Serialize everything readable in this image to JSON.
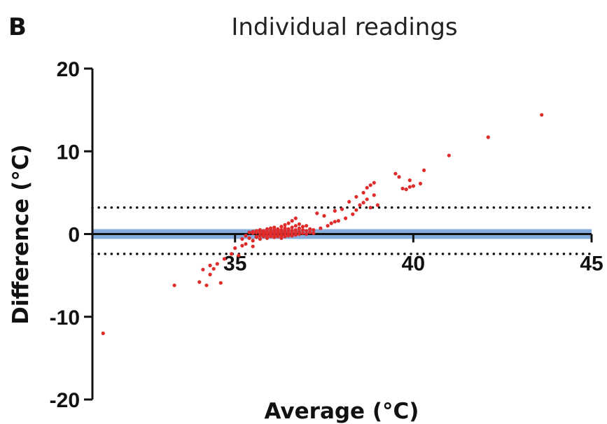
{
  "panel_label": "B",
  "chart_data": {
    "type": "scatter",
    "title": "Individual readings",
    "xlabel": "Average (°C)",
    "ylabel": "Difference (°C)",
    "xlim": [
      31,
      45
    ],
    "ylim": [
      -20,
      20
    ],
    "xticks": [
      35,
      40,
      45
    ],
    "yticks": [
      20,
      10,
      0,
      -10,
      -20
    ],
    "grid": false,
    "point_color": "#e02b2b",
    "reference_lines": [
      {
        "name": "mean",
        "y": 0,
        "style": "solid",
        "color": "#1f2a3a",
        "band_color": "#6f9fd6"
      },
      {
        "name": "upper-limit",
        "y": 3.2,
        "style": "dotted",
        "color": "#111111"
      },
      {
        "name": "lower-limit",
        "y": -2.4,
        "style": "dotted",
        "color": "#111111"
      }
    ],
    "x": [
      31.3,
      33.3,
      34.0,
      34.1,
      34.2,
      34.3,
      34.3,
      34.4,
      34.5,
      34.6,
      34.7,
      34.9,
      35.0,
      35.1,
      35.2,
      35.2,
      35.3,
      35.3,
      35.4,
      35.4,
      35.5,
      35.5,
      35.5,
      35.5,
      35.6,
      35.6,
      35.6,
      35.6,
      35.7,
      35.7,
      35.7,
      35.7,
      35.7,
      35.8,
      35.8,
      35.8,
      35.8,
      35.8,
      35.9,
      35.9,
      35.9,
      35.9,
      35.9,
      36.0,
      36.0,
      36.0,
      36.0,
      36.0,
      36.0,
      36.1,
      36.1,
      36.1,
      36.1,
      36.1,
      36.1,
      36.2,
      36.2,
      36.2,
      36.2,
      36.2,
      36.2,
      36.3,
      36.3,
      36.3,
      36.3,
      36.3,
      36.3,
      36.4,
      36.4,
      36.4,
      36.4,
      36.4,
      36.4,
      36.5,
      36.5,
      36.5,
      36.5,
      36.5,
      36.6,
      36.6,
      36.6,
      36.6,
      36.6,
      36.7,
      36.7,
      36.7,
      36.7,
      36.7,
      36.8,
      36.8,
      36.8,
      36.8,
      36.9,
      36.9,
      36.9,
      37.0,
      37.0,
      37.0,
      37.1,
      37.1,
      37.2,
      37.2,
      37.3,
      37.4,
      37.5,
      37.6,
      37.7,
      37.8,
      37.8,
      37.9,
      38.0,
      38.1,
      38.2,
      38.3,
      38.4,
      38.4,
      38.5,
      38.6,
      38.6,
      38.7,
      38.7,
      38.8,
      38.8,
      38.9,
      38.9,
      39.0,
      39.5,
      39.6,
      39.7,
      39.8,
      39.9,
      39.9,
      40.0,
      40.2,
      40.3,
      41.0,
      42.1,
      43.6
    ],
    "y": [
      -12.0,
      -6.2,
      -5.8,
      -4.3,
      -6.2,
      -3.8,
      -4.9,
      -4.2,
      -3.6,
      -5.9,
      -3.0,
      -2.4,
      -1.7,
      -2.6,
      -1.4,
      -0.6,
      -0.2,
      -1.2,
      -0.5,
      0.2,
      -0.8,
      0.1,
      0.3,
      -1.5,
      -0.3,
      0.2,
      -0.4,
      0.4,
      -0.6,
      0.1,
      0.3,
      -0.2,
      0.5,
      -0.1,
      0.2,
      -0.3,
      0.4,
      0.0,
      0.1,
      -0.5,
      0.3,
      -0.2,
      0.6,
      0.2,
      -0.1,
      0.4,
      -0.3,
      0.0,
      0.7,
      0.1,
      -0.4,
      0.3,
      0.5,
      -0.2,
      0.8,
      0.0,
      0.2,
      -0.3,
      0.6,
      -0.1,
      0.4,
      0.1,
      -0.2,
      0.5,
      0.3,
      -0.5,
      0.9,
      0.2,
      -0.1,
      0.4,
      0.7,
      -0.3,
      1.1,
      0.0,
      0.3,
      -0.2,
      0.6,
      1.3,
      0.1,
      0.4,
      -0.2,
      0.8,
      1.6,
      0.2,
      -0.1,
      0.5,
      1.0,
      1.9,
      0.0,
      0.3,
      0.7,
      1.2,
      0.1,
      0.5,
      0.9,
      0.0,
      0.4,
      1.0,
      0.2,
      0.6,
      0.1,
      0.5,
      2.5,
      0.7,
      2.2,
      1.0,
      1.3,
      1.5,
      2.8,
      1.6,
      3.0,
      1.9,
      3.9,
      2.4,
      4.5,
      2.9,
      3.5,
      5.0,
      3.8,
      5.6,
      4.2,
      5.9,
      3.2,
      6.2,
      4.7,
      3.5,
      7.3,
      6.9,
      5.5,
      5.4,
      5.7,
      6.5,
      5.8,
      6.1,
      7.7,
      9.5,
      11.7,
      14.4
    ]
  }
}
